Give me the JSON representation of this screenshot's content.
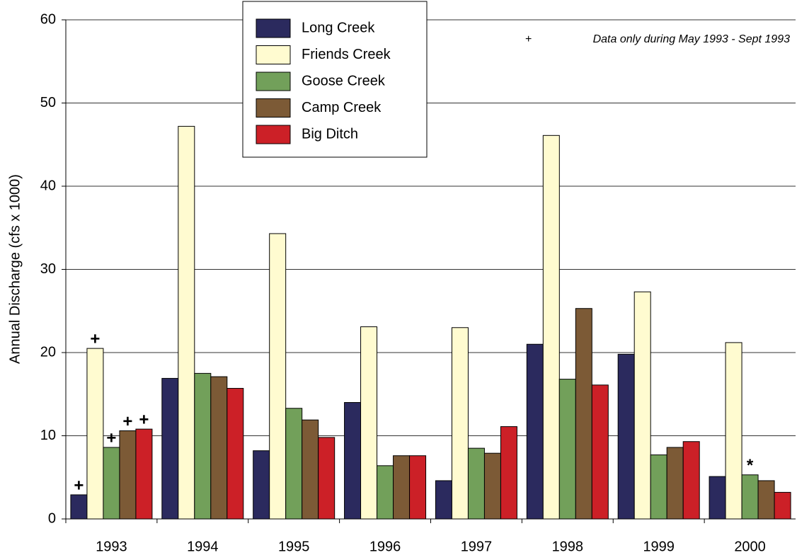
{
  "chart_data": {
    "type": "bar",
    "y_label": "Annual Discharge (cfs x 1000)",
    "categories": [
      "1993",
      "1994",
      "1995",
      "1996",
      "1997",
      "1998",
      "1999",
      "2000"
    ],
    "series": [
      {
        "name": "Long Creek",
        "color": "#2b2a5e",
        "values": [
          2.9,
          16.9,
          8.2,
          14.0,
          4.6,
          21.0,
          19.8,
          5.1
        ],
        "markers": [
          "+",
          null,
          null,
          null,
          null,
          null,
          null,
          null
        ]
      },
      {
        "name": "Friends Creek",
        "color": "#fffbd0",
        "values": [
          20.5,
          47.2,
          34.3,
          23.1,
          23.0,
          46.1,
          27.3,
          21.2
        ],
        "markers": [
          "+",
          null,
          null,
          null,
          null,
          null,
          null,
          null
        ]
      },
      {
        "name": "Goose Creek",
        "color": "#72a05a",
        "values": [
          8.6,
          17.5,
          13.3,
          6.4,
          8.5,
          16.8,
          7.7,
          5.3
        ],
        "markers": [
          "+",
          null,
          null,
          null,
          null,
          null,
          null,
          "*"
        ]
      },
      {
        "name": "Camp Creek",
        "color": "#7c5a36",
        "values": [
          10.6,
          17.1,
          11.9,
          7.6,
          7.9,
          25.3,
          8.6,
          4.6
        ],
        "markers": [
          "+",
          null,
          null,
          null,
          null,
          null,
          null,
          null
        ]
      },
      {
        "name": "Big Ditch",
        "color": "#cc2027",
        "values": [
          10.8,
          15.7,
          9.8,
          7.6,
          11.1,
          16.1,
          9.3,
          3.2
        ],
        "markers": [
          "+",
          null,
          null,
          null,
          null,
          null,
          null,
          null
        ]
      }
    ],
    "footnote": {
      "symbol": "+",
      "text": "Data only during May 1993 - Sept 1993"
    },
    "ylim": [
      0,
      60
    ],
    "yticks": [
      0,
      10,
      20,
      30,
      40,
      50,
      60
    ],
    "grid": true,
    "legend": "top"
  }
}
